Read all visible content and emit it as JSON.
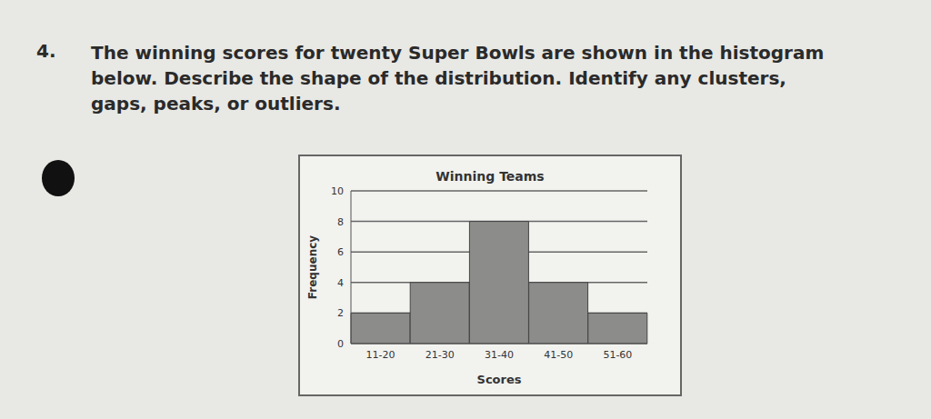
{
  "question": {
    "number": "4.",
    "text": "The winning scores for twenty Super Bowls are shown in the histogram below. Describe the shape of the distribution. Identify any clusters, gaps, peaks, or outliers."
  },
  "chart_data": {
    "type": "bar",
    "title": "Winning Teams",
    "x_label": "Scores",
    "y_label": "Frequency",
    "categories": [
      "11-20",
      "21-30",
      "31-40",
      "41-50",
      "51-60"
    ],
    "values": [
      2,
      4,
      8,
      4,
      2
    ],
    "color": "#8c8c8a",
    "ylim": [
      0,
      10
    ],
    "yticks": [
      0,
      2,
      4,
      6,
      8,
      10
    ],
    "grid": true
  }
}
